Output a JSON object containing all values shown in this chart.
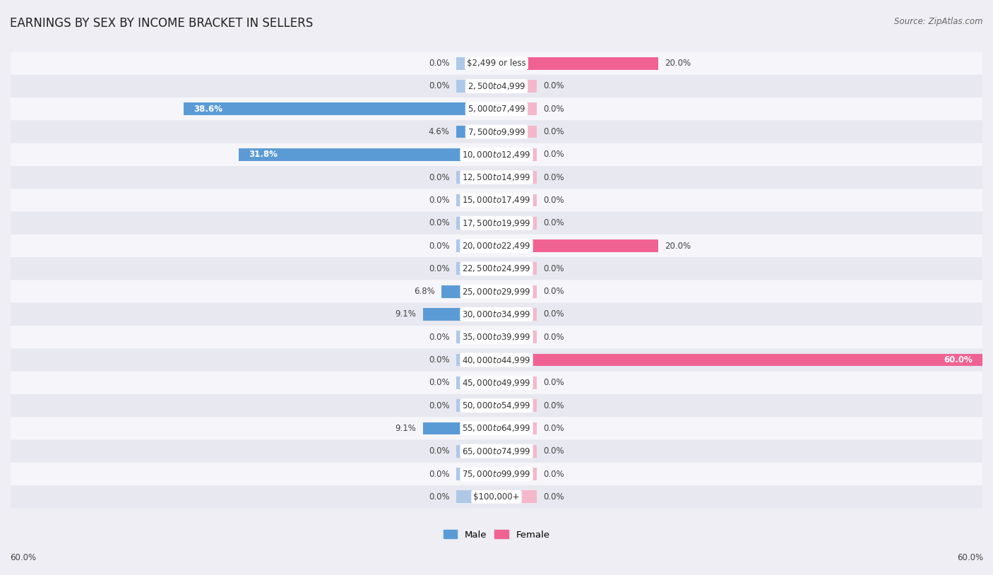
{
  "title": "EARNINGS BY SEX BY INCOME BRACKET IN SELLERS",
  "source": "Source: ZipAtlas.com",
  "categories": [
    "$2,499 or less",
    "$2,500 to $4,999",
    "$5,000 to $7,499",
    "$7,500 to $9,999",
    "$10,000 to $12,499",
    "$12,500 to $14,999",
    "$15,000 to $17,499",
    "$17,500 to $19,999",
    "$20,000 to $22,499",
    "$22,500 to $24,999",
    "$25,000 to $29,999",
    "$30,000 to $34,999",
    "$35,000 to $39,999",
    "$40,000 to $44,999",
    "$45,000 to $49,999",
    "$50,000 to $54,999",
    "$55,000 to $64,999",
    "$65,000 to $74,999",
    "$75,000 to $99,999",
    "$100,000+"
  ],
  "male_values": [
    0.0,
    0.0,
    38.6,
    4.6,
    31.8,
    0.0,
    0.0,
    0.0,
    0.0,
    0.0,
    6.8,
    9.1,
    0.0,
    0.0,
    0.0,
    0.0,
    9.1,
    0.0,
    0.0,
    0.0
  ],
  "female_values": [
    20.0,
    0.0,
    0.0,
    0.0,
    0.0,
    0.0,
    0.0,
    0.0,
    20.0,
    0.0,
    0.0,
    0.0,
    0.0,
    60.0,
    0.0,
    0.0,
    0.0,
    0.0,
    0.0,
    0.0
  ],
  "male_color_full": "#5b9bd5",
  "male_color_stub": "#aec8e8",
  "female_color_full": "#f06292",
  "female_color_stub": "#f4b8cb",
  "bg_color": "#eeeef4",
  "row_color_odd": "#f5f5fa",
  "row_color_even": "#e8e8f0",
  "axis_max": 60.0,
  "stub_size": 5.0,
  "bar_height": 0.55,
  "title_fontsize": 12,
  "label_fontsize": 8.5,
  "category_fontsize": 8.5,
  "source_fontsize": 8.5
}
